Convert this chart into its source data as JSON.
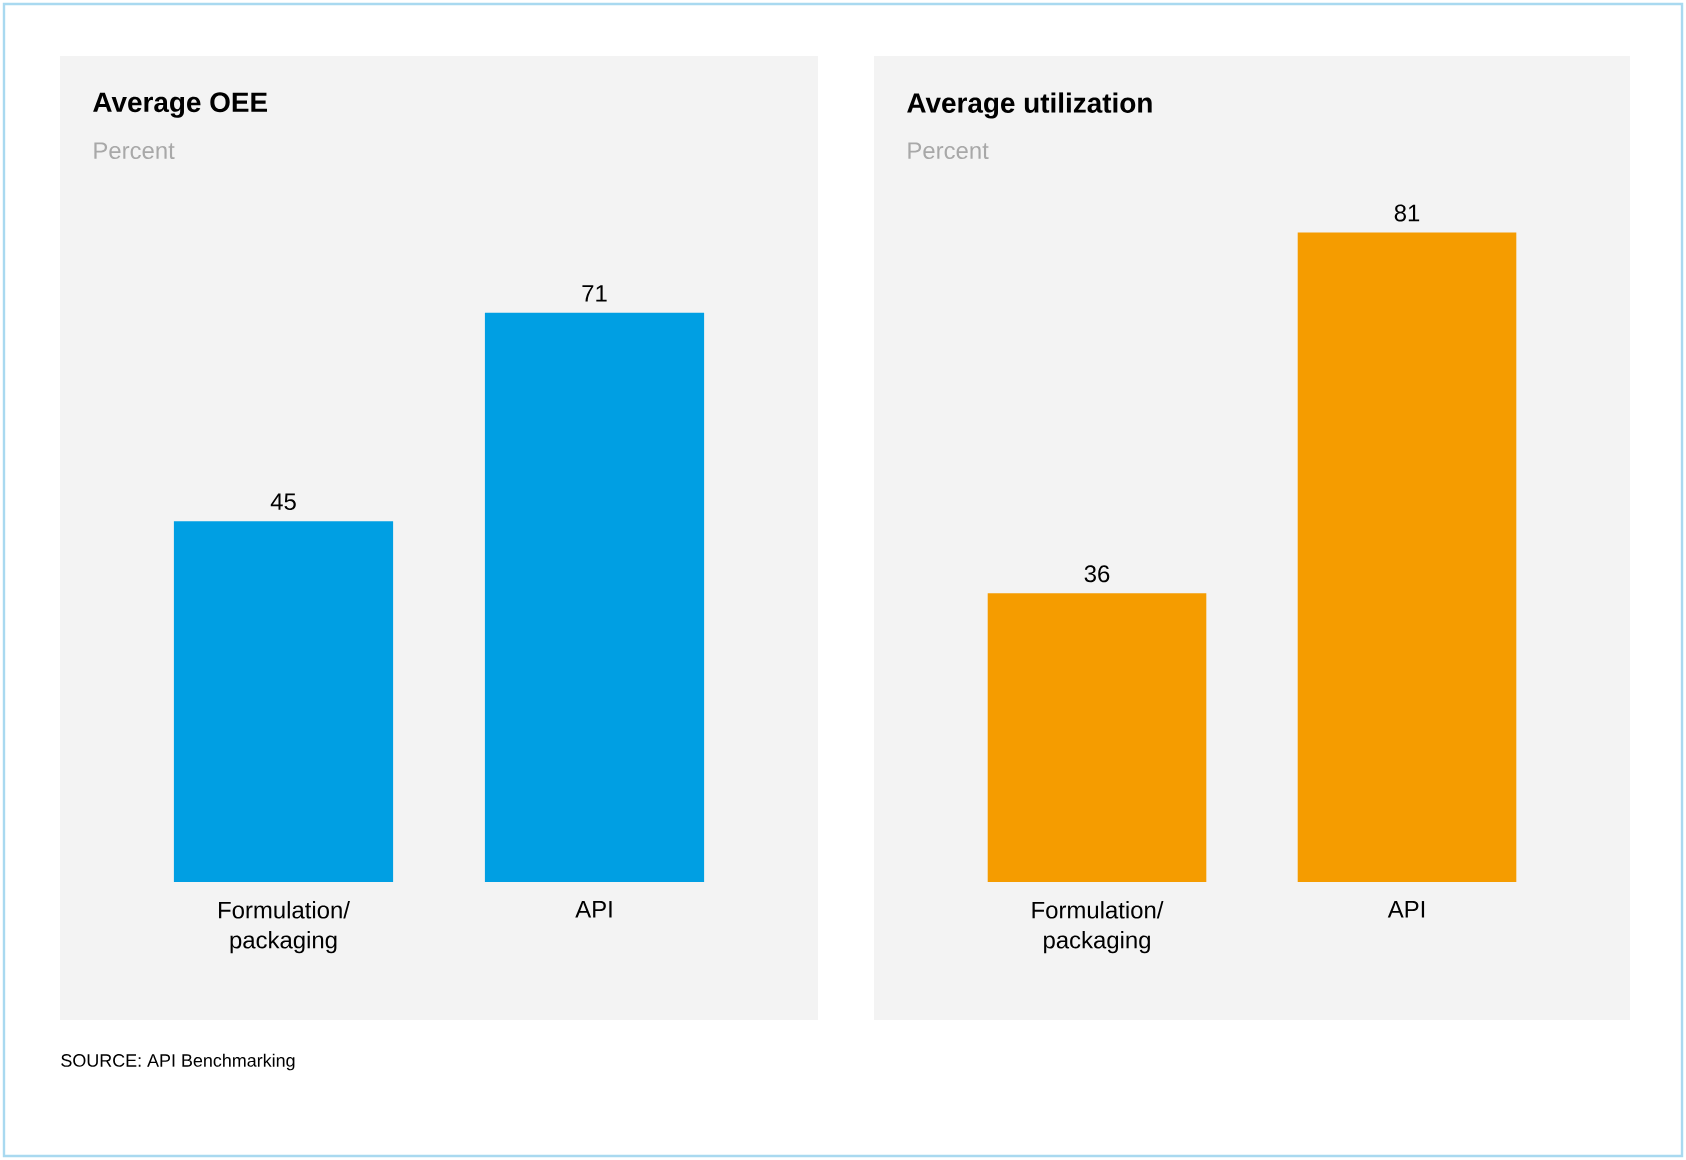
{
  "chart_data": [
    {
      "type": "bar",
      "title": "Average OEE",
      "subtitle": "Percent",
      "categories": [
        "Formulation/ packaging",
        "API"
      ],
      "values": [
        45,
        71
      ],
      "color": "#009fe3",
      "data_labels": true,
      "annotations": [
        "SOURCE: API Benchmarking"
      ]
    },
    {
      "type": "bar",
      "title": "Average utilization",
      "subtitle": "Percent",
      "categories": [
        "Formulation/ packaging",
        "API"
      ],
      "values": [
        36,
        81
      ],
      "color": "#f59c00",
      "data_labels": true
    }
  ]
}
